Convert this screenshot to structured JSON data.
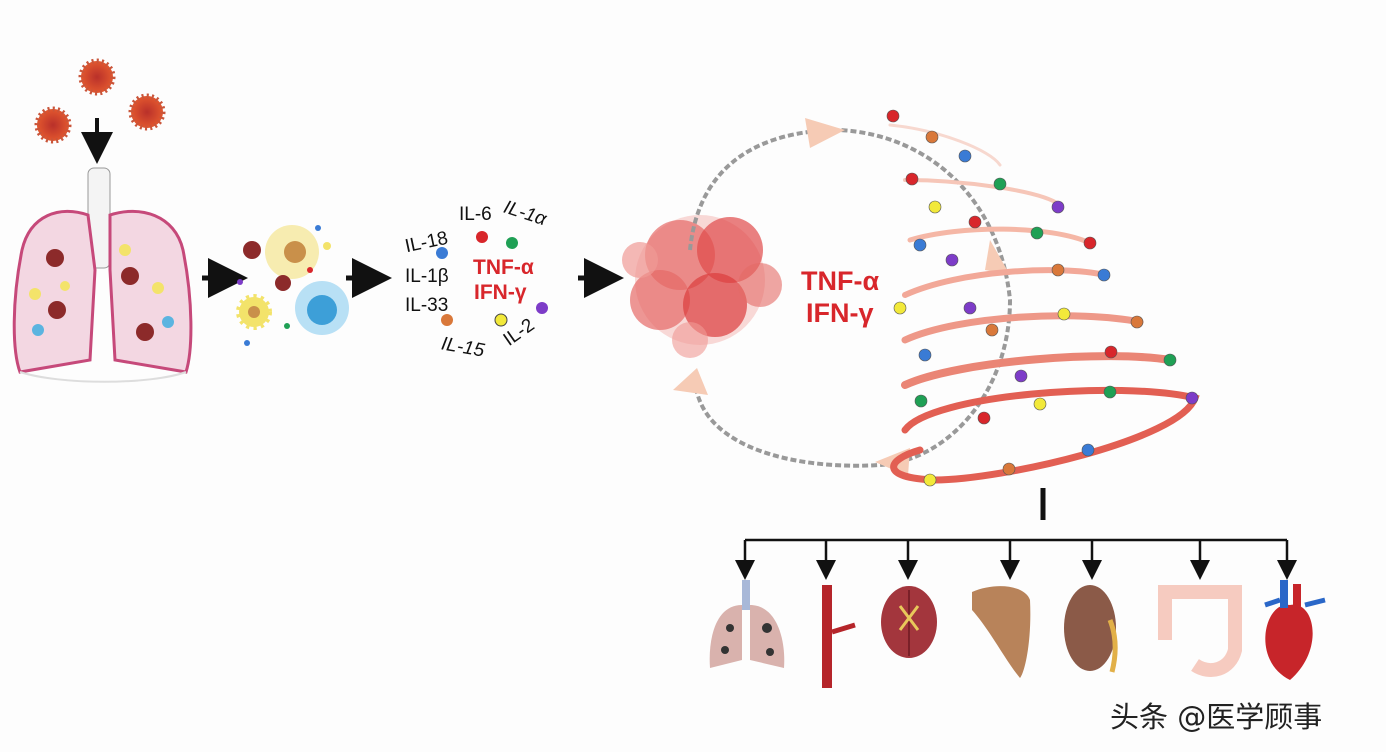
{
  "cytokines": {
    "il18": "IL-18",
    "il6": "IL-6",
    "il1a": "IL-1α",
    "il1b": "IL-1β",
    "il33": "IL-33",
    "il15": "IL-15",
    "il2": "IL-2",
    "tnf": "TNF-α",
    "ifn": "IFN-γ"
  },
  "storm": {
    "tnf": "TNF-α",
    "ifn": "IFN-γ"
  },
  "organs": [
    "lungs-icon",
    "blood-vessel-icon",
    "brain-icon",
    "liver-icon",
    "kidney-icon",
    "intestine-icon",
    "heart-icon"
  ],
  "watermark": "头条 @医学顾事",
  "colors": {
    "red": "#d8262b",
    "green": "#1fa055",
    "blue": "#3a7bd5",
    "purple": "#7d3cc8",
    "yellow": "#f2e93a",
    "orange": "#d9783a"
  }
}
